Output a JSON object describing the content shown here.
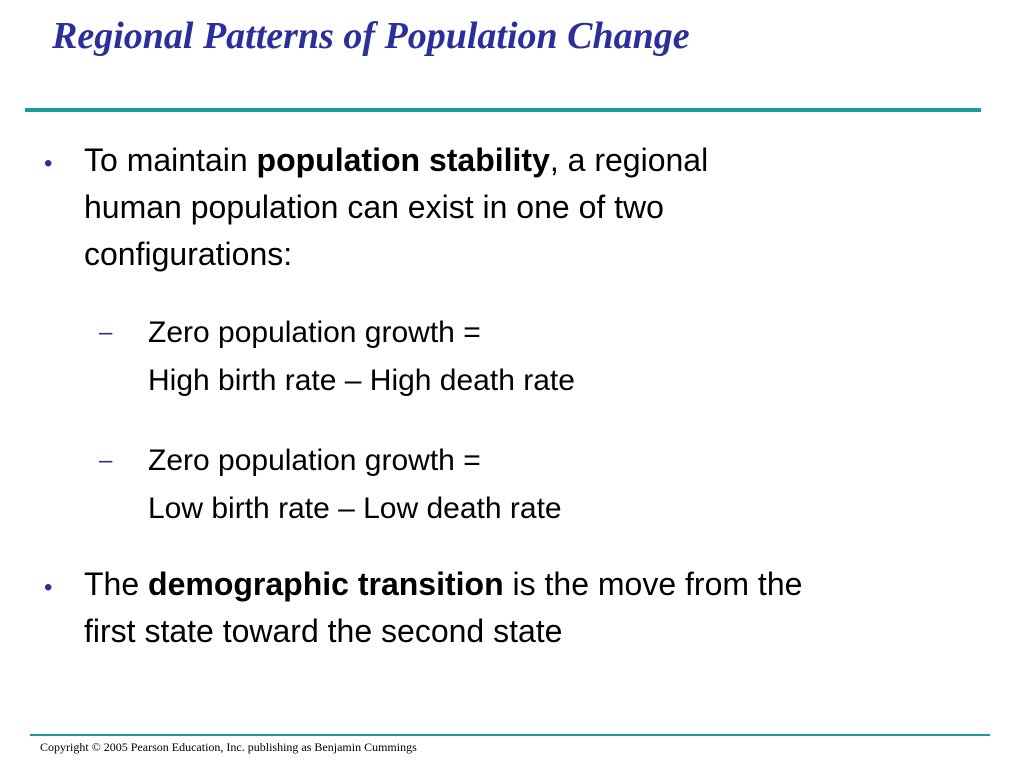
{
  "colors": {
    "title": "#2b2f9b",
    "rule": "#1a9c9a",
    "bullet": "#2b2f9b"
  },
  "slide": {
    "title": "Regional Patterns of Population Change",
    "bullets": [
      {
        "marker": "•",
        "lines": [
          [
            "To maintain ",
            "population stability",
            ", a regional"
          ],
          [
            "human population can exist in one of two"
          ],
          [
            "configurations:"
          ]
        ]
      },
      {
        "marker": "•",
        "lines": [
          [
            "The ",
            "demographic transition",
            " is the move from the"
          ],
          [
            "first state toward the second state"
          ]
        ]
      }
    ],
    "subbullets": [
      {
        "marker": "–",
        "line1": "Zero population growth =",
        "line2": "High birth rate – High death rate"
      },
      {
        "marker": "–",
        "line1": "Zero population growth =",
        "line2": "Low birth rate – Low death rate"
      }
    ],
    "footer": "Copyright © 2005 Pearson Education, Inc. publishing as Benjamin Cummings"
  }
}
